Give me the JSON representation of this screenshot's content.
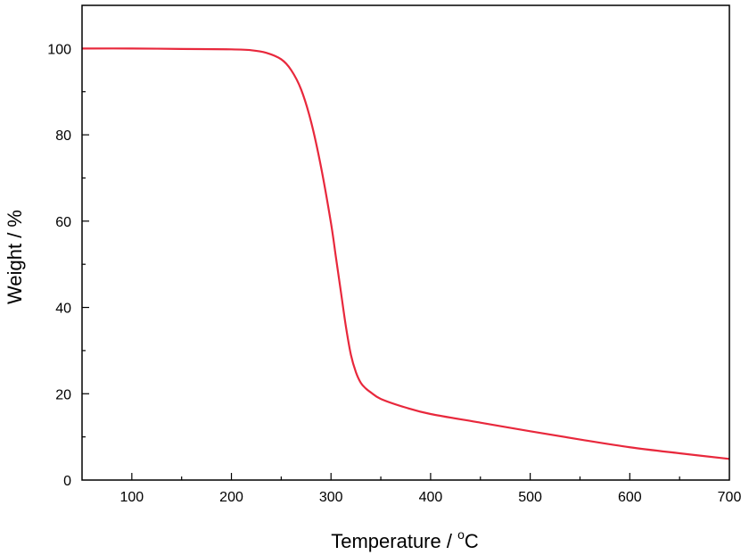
{
  "chart_data": {
    "type": "line",
    "title": "",
    "xlabel": "Temperature / ",
    "xlabel_unit_sup": "o",
    "xlabel_unit": "C",
    "ylabel": "Weight / %",
    "xlim": [
      50,
      700
    ],
    "ylim": [
      0,
      110
    ],
    "xticks": [
      100,
      200,
      300,
      400,
      500,
      600,
      700
    ],
    "yticks": [
      0,
      20,
      40,
      60,
      80,
      100
    ],
    "x_minor_step": 50,
    "y_minor_step": 10,
    "grid": false,
    "legend": "none",
    "series": [
      {
        "color": "#e8283c",
        "x": [
          50,
          100,
          150,
          200,
          220,
          235,
          250,
          260,
          270,
          280,
          290,
          300,
          305,
          310,
          315,
          320,
          325,
          330,
          335,
          340,
          350,
          375,
          400,
          450,
          500,
          550,
          600,
          650,
          700
        ],
        "y": [
          100,
          100,
          99.9,
          99.8,
          99.6,
          99.0,
          97.5,
          95.0,
          90.5,
          83.0,
          72.5,
          59.5,
          51.5,
          43.5,
          35.5,
          29.0,
          25.0,
          22.5,
          21.2,
          20.3,
          18.8,
          16.8,
          15.3,
          13.3,
          11.3,
          9.4,
          7.6,
          6.2,
          4.9
        ]
      }
    ]
  }
}
